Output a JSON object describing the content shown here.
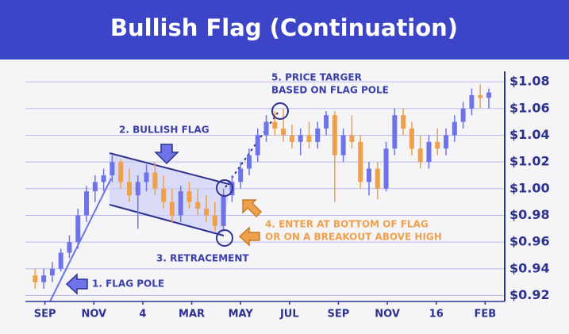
{
  "chart_data": {
    "type": "candlestick",
    "title": "Bullish Flag (Continuation)",
    "x": [
      -0.4,
      -0.05,
      0.3,
      0.65,
      1.0,
      1.35,
      1.7,
      2.05,
      2.4,
      2.75,
      3.1,
      3.45,
      3.8,
      4.15,
      4.5,
      4.85,
      5.2,
      5.55,
      5.9,
      6.25,
      6.6,
      6.95,
      7.3,
      7.65,
      8.0,
      8.35,
      8.7,
      9.05,
      9.4,
      9.75,
      10.1,
      10.45,
      10.8,
      11.15,
      11.5,
      11.85,
      12.2,
      12.55,
      12.9,
      13.25,
      13.6,
      13.95,
      14.3,
      14.65,
      15.0,
      15.35,
      15.7,
      16.05,
      16.4,
      16.75,
      17.1,
      17.45,
      17.8,
      18.15
    ],
    "open": [
      0.935,
      0.93,
      0.935,
      0.94,
      0.952,
      0.96,
      0.98,
      0.998,
      1.005,
      1.01,
      1.02,
      1.005,
      0.995,
      1.005,
      1.012,
      1.0,
      0.99,
      0.98,
      0.998,
      0.99,
      0.985,
      0.98,
      0.972,
      0.995,
      1.005,
      1.015,
      1.025,
      1.04,
      1.05,
      1.045,
      1.04,
      1.035,
      1.04,
      1.035,
      1.045,
      1.055,
      1.025,
      1.04,
      1.035,
      1.005,
      1.015,
      1.0,
      1.03,
      1.055,
      1.045,
      1.03,
      1.02,
      1.035,
      1.03,
      1.04,
      1.05,
      1.06,
      1.07,
      1.068
    ],
    "high": [
      0.94,
      0.94,
      0.945,
      0.955,
      0.965,
      0.985,
      1.002,
      1.01,
      1.015,
      1.025,
      1.022,
      1.015,
      1.01,
      1.018,
      1.02,
      1.01,
      1.0,
      1.002,
      1.005,
      1.0,
      0.995,
      0.99,
      1.0,
      1.01,
      1.02,
      1.03,
      1.045,
      1.055,
      1.058,
      1.06,
      1.048,
      1.045,
      1.05,
      1.05,
      1.058,
      1.058,
      1.045,
      1.055,
      1.04,
      1.02,
      1.02,
      1.035,
      1.06,
      1.06,
      1.05,
      1.04,
      1.04,
      1.045,
      1.045,
      1.055,
      1.065,
      1.075,
      1.078,
      1.075
    ],
    "low": [
      0.925,
      0.925,
      0.93,
      0.938,
      0.948,
      0.955,
      0.975,
      0.99,
      0.998,
      1.005,
      1.0,
      0.99,
      0.97,
      0.998,
      0.995,
      0.985,
      0.975,
      0.975,
      0.985,
      0.98,
      0.975,
      0.968,
      0.968,
      0.99,
      1.0,
      1.01,
      1.02,
      1.035,
      1.04,
      1.035,
      1.03,
      1.025,
      1.03,
      1.03,
      1.04,
      0.99,
      1.02,
      1.03,
      1.0,
      0.995,
      0.992,
      0.998,
      1.025,
      1.04,
      1.025,
      1.015,
      1.015,
      1.025,
      1.025,
      1.035,
      1.045,
      1.055,
      1.06,
      1.06
    ],
    "close": [
      0.93,
      0.935,
      0.94,
      0.952,
      0.96,
      0.98,
      0.998,
      1.005,
      1.01,
      1.02,
      1.005,
      0.995,
      1.005,
      1.012,
      1.0,
      0.99,
      0.98,
      0.998,
      0.99,
      0.985,
      0.98,
      0.972,
      0.995,
      1.005,
      1.015,
      1.025,
      1.04,
      1.05,
      1.045,
      1.04,
      1.035,
      1.04,
      1.035,
      1.045,
      1.055,
      1.025,
      1.04,
      1.035,
      1.005,
      1.015,
      1.0,
      1.03,
      1.055,
      1.045,
      1.03,
      1.02,
      1.035,
      1.03,
      1.04,
      1.05,
      1.06,
      1.07,
      1.068,
      1.072
    ],
    "up_color": "#6e74e8",
    "down_color": "#f0a04b",
    "xlim": [
      -0.8,
      18.8
    ],
    "xticks": [
      {
        "value": 0,
        "label": "SEP"
      },
      {
        "value": 2,
        "label": "NOV"
      },
      4,
      {
        "value": 6,
        "label": "MAR"
      },
      {
        "value": 8,
        "label": "MAY"
      },
      {
        "value": 10,
        "label": "JUL"
      },
      {
        "value": 12,
        "label": "SEP"
      },
      {
        "value": 14,
        "label": "NOV"
      },
      16,
      {
        "value": 18,
        "label": "FEB"
      }
    ],
    "ylim": [
      0.9155,
      1.0878
    ],
    "yticks": [
      {
        "value": 0.92,
        "label": "$0.92"
      },
      {
        "value": 0.94,
        "label": "$0.94"
      },
      {
        "value": 0.96,
        "label": "$0.96"
      },
      {
        "value": 0.98,
        "label": "$0.98"
      },
      {
        "value": 1.0,
        "label": "$1.00"
      },
      {
        "value": 1.02,
        "label": "$1.02"
      },
      {
        "value": 1.04,
        "label": "$1.04"
      },
      {
        "value": 1.06,
        "label": "$1.06"
      },
      {
        "value": 1.08,
        "label": "$1.08"
      }
    ],
    "grid": true,
    "annotations": [
      "5. PRICE TARGER",
      "BASED ON FLAG POLE",
      "2. BULLISH FLAG",
      "3. RETRACEMENT",
      "4. ENTER AT BOTTOM OF FLAG",
      "OR ON A BREAKOUT ABOVE HIGH",
      "1. FLAG POLE"
    ]
  }
}
